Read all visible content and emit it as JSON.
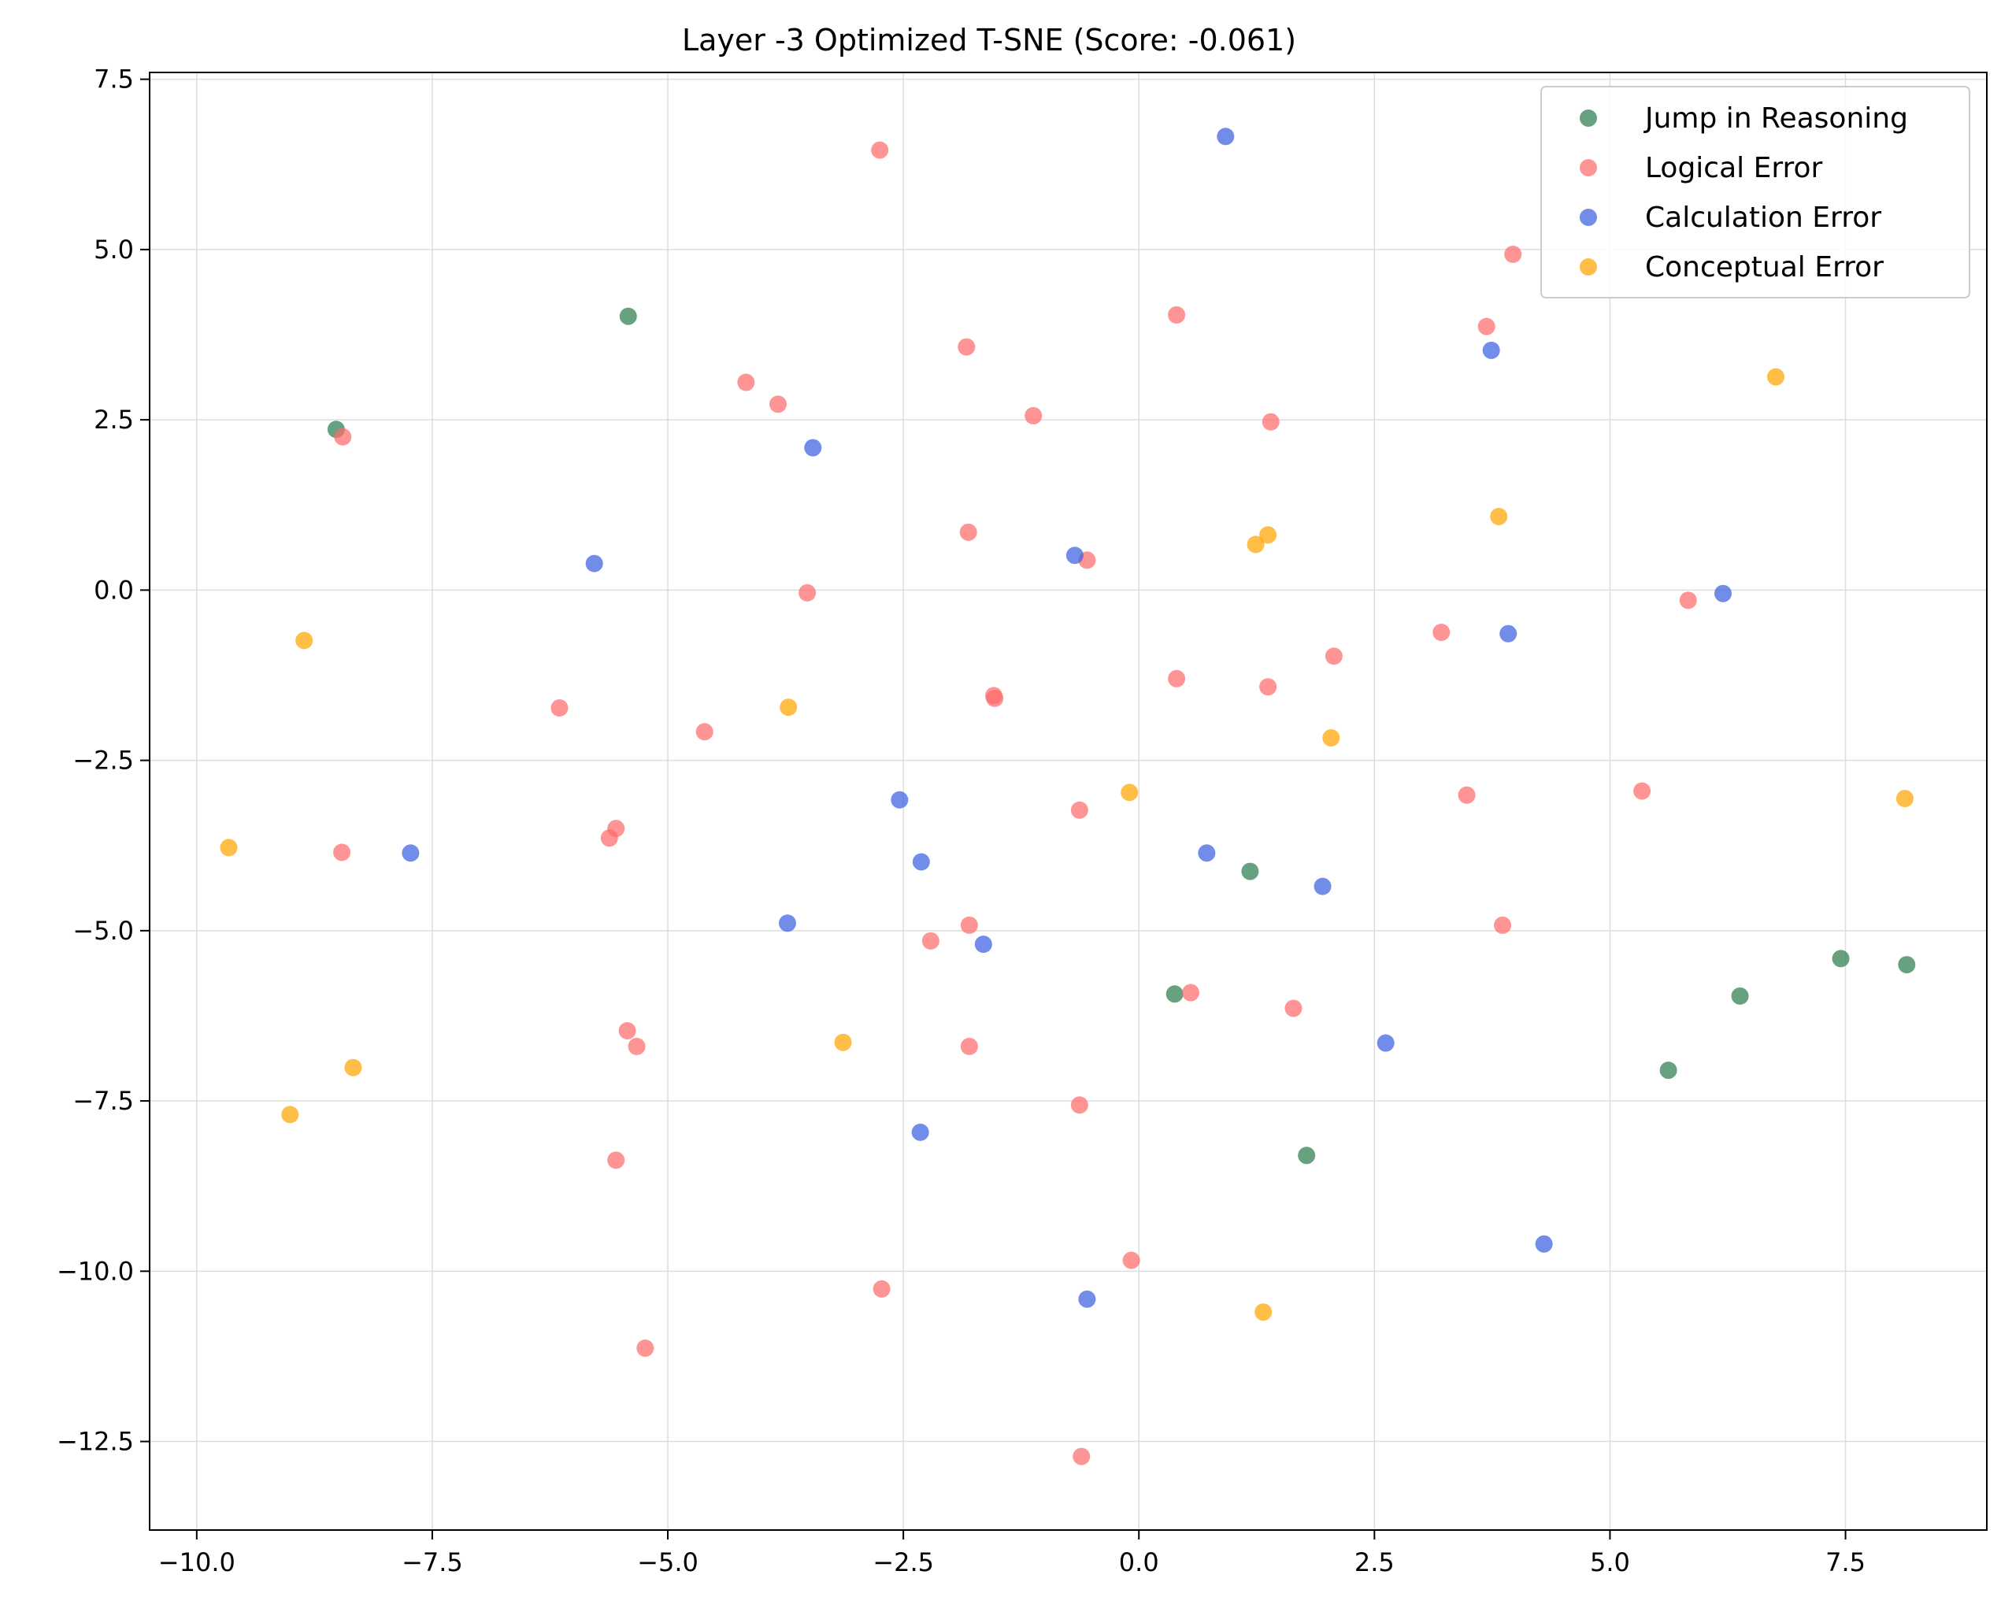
{
  "chart_data": {
    "type": "scatter",
    "title": "Layer -3 Optimized T-SNE (Score: -0.061)",
    "xlabel": "",
    "ylabel": "",
    "xlim": [
      -10.5,
      9.0
    ],
    "ylim": [
      -13.8,
      7.6
    ],
    "xticks": [
      -10.0,
      -7.5,
      -5.0,
      -2.5,
      0.0,
      2.5,
      5.0,
      7.5
    ],
    "xtick_labels": [
      "−10.0",
      "−7.5",
      "−5.0",
      "−2.5",
      "0.0",
      "2.5",
      "5.0",
      "7.5"
    ],
    "yticks": [
      7.5,
      5.0,
      2.5,
      0.0,
      -2.5,
      -5.0,
      -7.5,
      -10.0,
      -12.5
    ],
    "ytick_labels": [
      "7.5",
      "5.0",
      "2.5",
      "0.0",
      "−2.5",
      "−5.0",
      "−7.5",
      "−10.0",
      "−12.5"
    ],
    "grid": true,
    "legend_position": "top-right",
    "series": [
      {
        "name": "Jump in Reasoning",
        "color": "#2e7d4f",
        "points": [
          [
            -5.42,
            4.02
          ],
          [
            -8.52,
            2.36
          ],
          [
            0.38,
            -5.93
          ],
          [
            1.18,
            -4.13
          ],
          [
            1.78,
            -8.3
          ],
          [
            5.62,
            -7.05
          ],
          [
            6.38,
            -5.96
          ],
          [
            7.45,
            -5.41
          ],
          [
            8.15,
            -5.5
          ]
        ]
      },
      {
        "name": "Logical Error",
        "color": "#ff6b6b",
        "points": [
          [
            -2.75,
            6.46
          ],
          [
            3.97,
            4.93
          ],
          [
            0.4,
            4.04
          ],
          [
            3.69,
            3.87
          ],
          [
            -1.83,
            3.57
          ],
          [
            -4.17,
            3.05
          ],
          [
            -3.83,
            2.73
          ],
          [
            -1.12,
            2.56
          ],
          [
            1.4,
            2.47
          ],
          [
            -8.45,
            2.25
          ],
          [
            -1.81,
            0.85
          ],
          [
            -0.55,
            0.44
          ],
          [
            -3.52,
            -0.04
          ],
          [
            5.83,
            -0.15
          ],
          [
            3.21,
            -0.62
          ],
          [
            2.07,
            -0.97
          ],
          [
            0.4,
            -1.3
          ],
          [
            1.37,
            -1.42
          ],
          [
            -1.54,
            -1.55
          ],
          [
            -1.53,
            -1.59
          ],
          [
            -6.15,
            -1.73
          ],
          [
            -4.61,
            -2.08
          ],
          [
            5.34,
            -2.95
          ],
          [
            3.48,
            -3.01
          ],
          [
            -0.63,
            -3.23
          ],
          [
            -5.55,
            -3.5
          ],
          [
            -5.62,
            -3.64
          ],
          [
            -8.46,
            -3.85
          ],
          [
            -1.8,
            -4.92
          ],
          [
            3.86,
            -4.92
          ],
          [
            -2.21,
            -5.15
          ],
          [
            0.55,
            -5.91
          ],
          [
            1.64,
            -6.14
          ],
          [
            -5.43,
            -6.47
          ],
          [
            -5.33,
            -6.7
          ],
          [
            -1.8,
            -6.7
          ],
          [
            -0.63,
            -7.56
          ],
          [
            -5.55,
            -8.37
          ],
          [
            -0.08,
            -9.84
          ],
          [
            -2.73,
            -10.26
          ],
          [
            -5.24,
            -11.13
          ],
          [
            -0.61,
            -12.72
          ]
        ]
      },
      {
        "name": "Calculation Error",
        "color": "#3b5fe0",
        "points": [
          [
            0.92,
            6.66
          ],
          [
            3.74,
            3.52
          ],
          [
            -3.46,
            2.09
          ],
          [
            -0.68,
            0.51
          ],
          [
            -5.78,
            0.39
          ],
          [
            6.2,
            -0.05
          ],
          [
            3.92,
            -0.64
          ],
          [
            -2.54,
            -3.08
          ],
          [
            -7.73,
            -3.86
          ],
          [
            0.72,
            -3.86
          ],
          [
            -2.31,
            -3.99
          ],
          [
            1.95,
            -4.35
          ],
          [
            -3.73,
            -4.89
          ],
          [
            -1.65,
            -5.2
          ],
          [
            2.62,
            -6.65
          ],
          [
            -2.32,
            -7.96
          ],
          [
            4.3,
            -9.6
          ],
          [
            -0.55,
            -10.41
          ]
        ]
      },
      {
        "name": "Conceptual Error",
        "color": "#ffa500",
        "points": [
          [
            6.76,
            3.13
          ],
          [
            3.82,
            1.08
          ],
          [
            1.37,
            0.81
          ],
          [
            1.24,
            0.67
          ],
          [
            -8.86,
            -0.74
          ],
          [
            -3.72,
            -1.72
          ],
          [
            2.04,
            -2.17
          ],
          [
            -0.1,
            -2.97
          ],
          [
            8.13,
            -3.06
          ],
          [
            -9.66,
            -3.78
          ],
          [
            -3.14,
            -6.64
          ],
          [
            -8.34,
            -7.01
          ],
          [
            -9.01,
            -7.7
          ],
          [
            1.32,
            -10.6
          ]
        ]
      }
    ]
  }
}
